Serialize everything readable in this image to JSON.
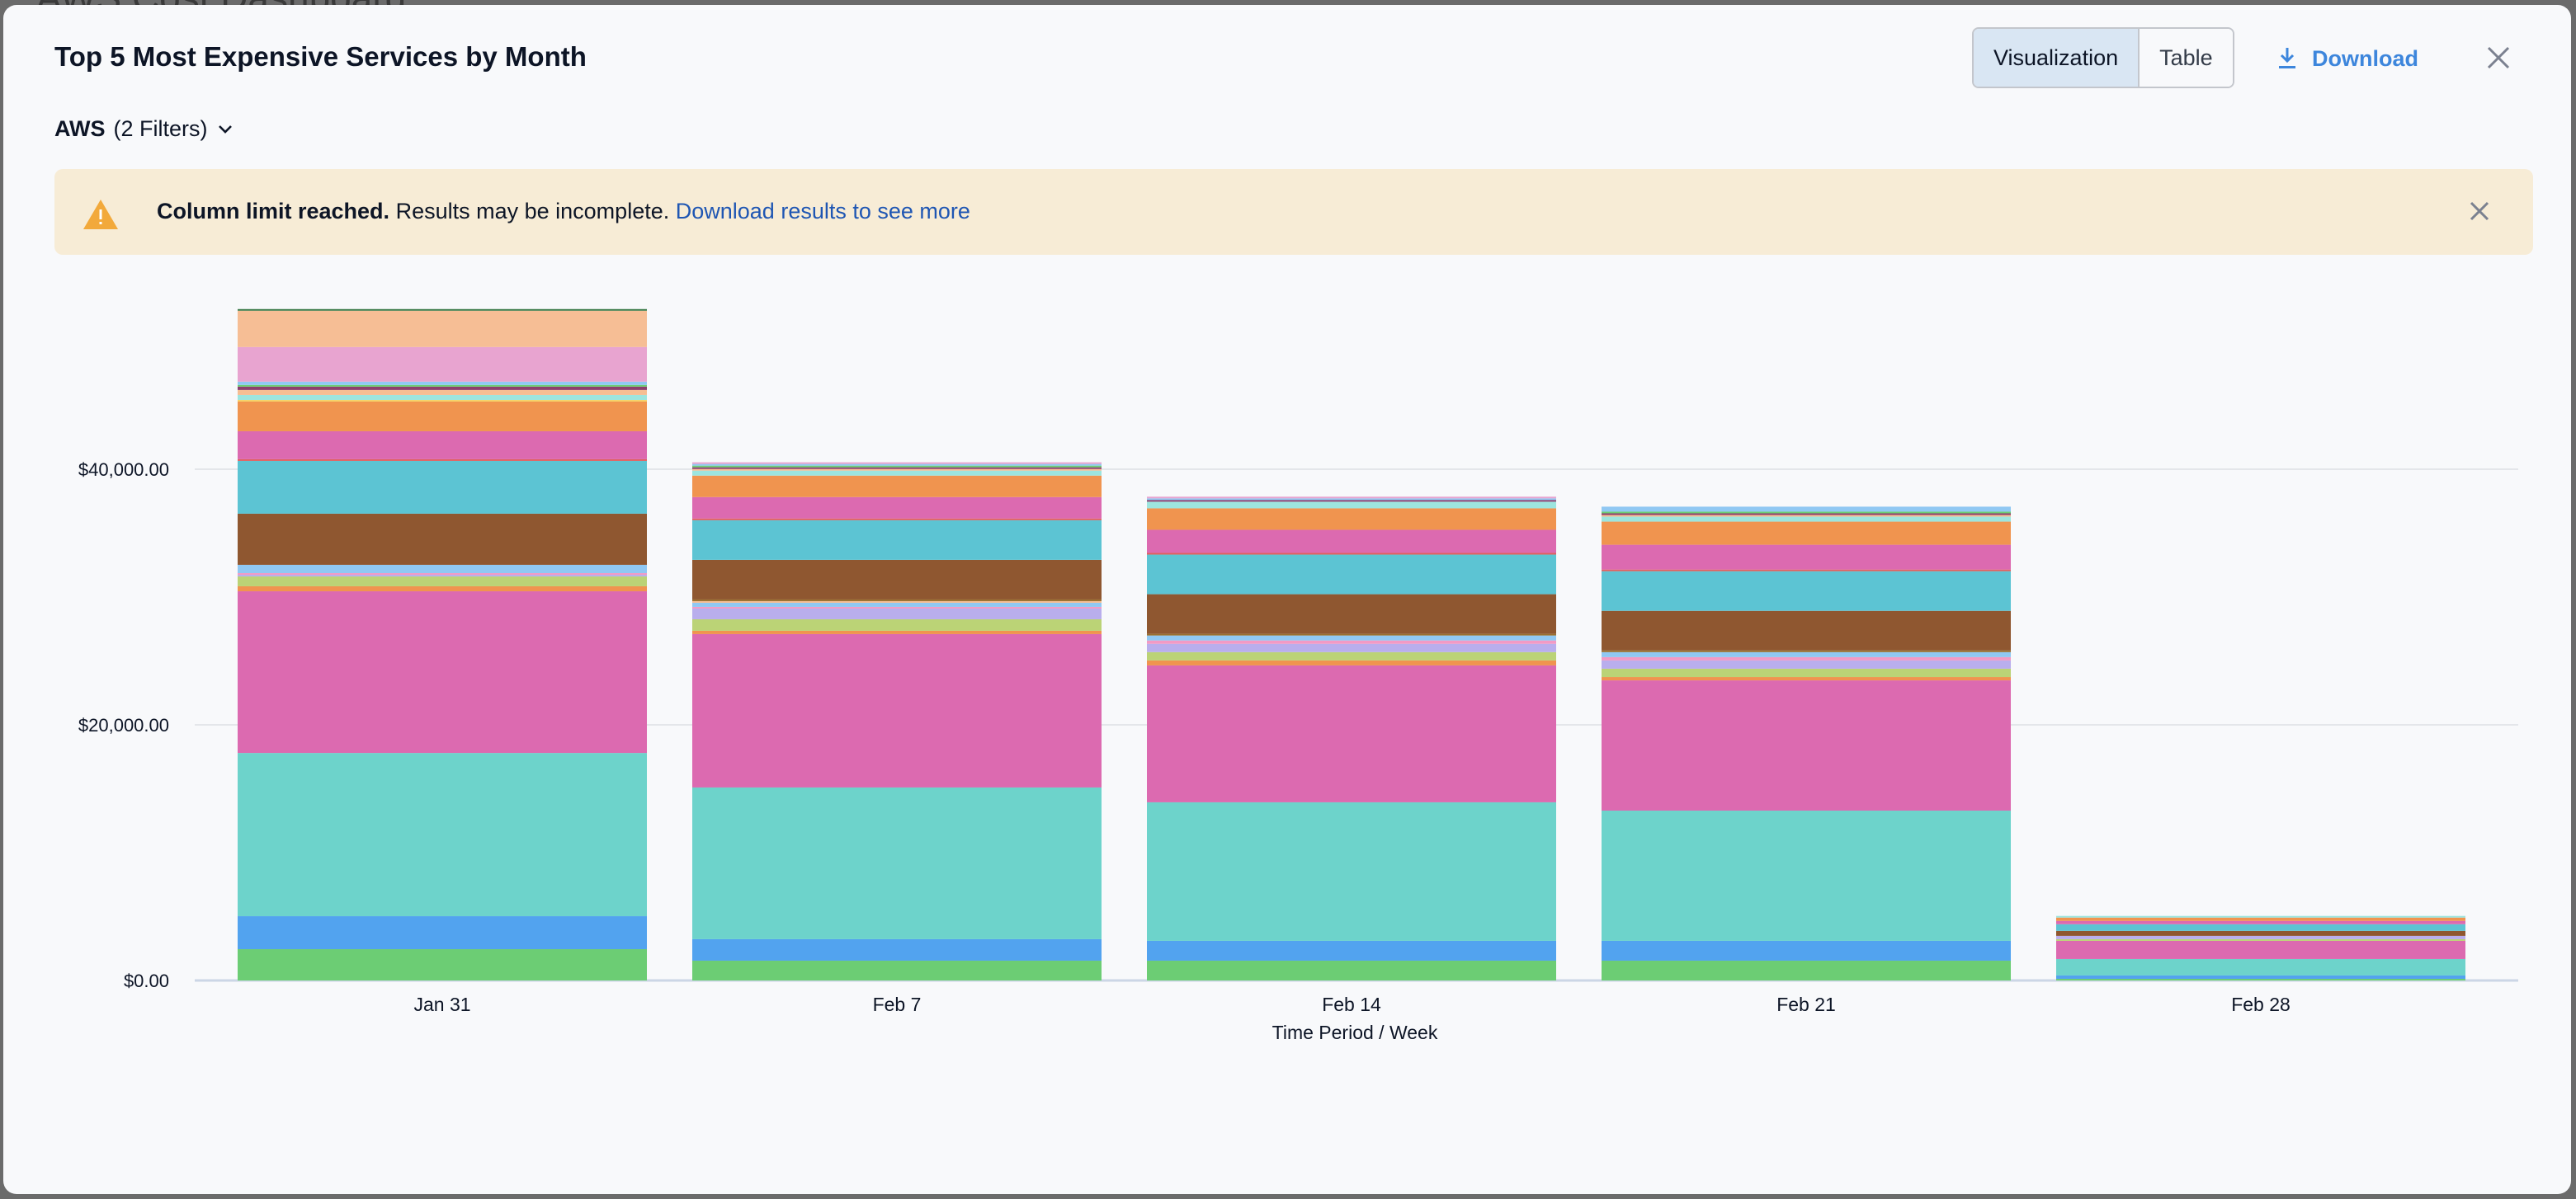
{
  "background": {
    "title": "AWS Cost Dashboard"
  },
  "header": {
    "title": "Top 5 Most Expensive Services by Month",
    "filter_source": "AWS",
    "filter_count": "(2 Filters)",
    "view_toggle": {
      "visualization": "Visualization",
      "table": "Table",
      "selected": "Visualization"
    },
    "download_label": "Download"
  },
  "banner": {
    "bold": "Column limit reached.",
    "text": "Results may be incomplete.",
    "link": "Download results to see more",
    "icon": "warning-triangle-icon",
    "color": "#f7ecd6",
    "icon_color": "#f2a93b"
  },
  "colors": {
    "accent": "#3d86dc",
    "link": "#1f56b3"
  },
  "chart_data": {
    "type": "bar",
    "stacked": true,
    "title": "",
    "xlabel": "Time Period / Week",
    "ylabel": "",
    "categories": [
      "Jan 31",
      "Feb 7",
      "Feb 14",
      "Feb 21",
      "Feb 28"
    ],
    "yticks": [
      0,
      20000,
      40000
    ],
    "ytick_labels": [
      "$0.00",
      "$20,000.00",
      "$40,000.00"
    ],
    "ylim": [
      0,
      54000
    ],
    "grid": true,
    "legend": "none",
    "series": [
      {
        "color": "#6ccd74",
        "values": [
          2450,
          1550,
          1550,
          1550,
          130
        ]
      },
      {
        "color": "#52a3ef",
        "values": [
          2580,
          1680,
          1550,
          1550,
          260
        ]
      },
      {
        "color": "#6dd3cb",
        "values": [
          12770,
          11870,
          10840,
          10190,
          1290
        ]
      },
      {
        "color": "#dc6ab0",
        "values": [
          12650,
          12000,
          10710,
          10190,
          1420
        ]
      },
      {
        "color": "#f0944f",
        "values": [
          390,
          260,
          390,
          260,
          0
        ]
      },
      {
        "color": "#bbd376",
        "values": [
          770,
          900,
          650,
          650,
          130
        ]
      },
      {
        "color": "#b9aeed",
        "values": [
          130,
          840,
          650,
          650,
          260
        ]
      },
      {
        "color": "#f29ac5",
        "values": [
          130,
          130,
          260,
          260,
          0
        ]
      },
      {
        "color": "#90c8f3",
        "values": [
          650,
          320,
          390,
          390,
          0
        ]
      },
      {
        "color": "#f6be93",
        "values": [
          0,
          130,
          0,
          0,
          0
        ]
      },
      {
        "color": "#9a6f2e",
        "values": [
          0,
          130,
          130,
          130,
          0
        ]
      },
      {
        "color": "#8f5730",
        "values": [
          4000,
          3100,
          3100,
          3100,
          390
        ]
      },
      {
        "color": "#5cc4d3",
        "values": [
          4130,
          3100,
          3100,
          3100,
          520
        ]
      },
      {
        "color": "#e0605e",
        "values": [
          130,
          130,
          130,
          130,
          0
        ]
      },
      {
        "color": "#dc6ab0",
        "values": [
          2190,
          1680,
          1810,
          1940,
          260
        ]
      },
      {
        "color": "#f0944f",
        "values": [
          2320,
          1680,
          1680,
          1810,
          260
        ]
      },
      {
        "color": "#f6d36b",
        "values": [
          130,
          0,
          0,
          0,
          0
        ]
      },
      {
        "color": "#9de5de",
        "values": [
          390,
          390,
          520,
          390,
          130
        ]
      },
      {
        "color": "#f6be93",
        "values": [
          390,
          130,
          0,
          130,
          0
        ]
      },
      {
        "color": "#8c3f6e",
        "values": [
          260,
          130,
          130,
          130,
          0
        ]
      },
      {
        "color": "#6ccd74",
        "values": [
          130,
          130,
          0,
          130,
          0
        ]
      },
      {
        "color": "#90c8f3",
        "values": [
          260,
          130,
          130,
          390,
          0
        ]
      },
      {
        "color": "#e8a4d0",
        "values": [
          2710,
          130,
          130,
          0,
          0
        ]
      },
      {
        "color": "#f6be95",
        "values": [
          2840,
          0,
          0,
          0,
          0
        ]
      },
      {
        "color": "#3e7d4c",
        "values": [
          130,
          0,
          0,
          0,
          0
        ]
      }
    ]
  }
}
